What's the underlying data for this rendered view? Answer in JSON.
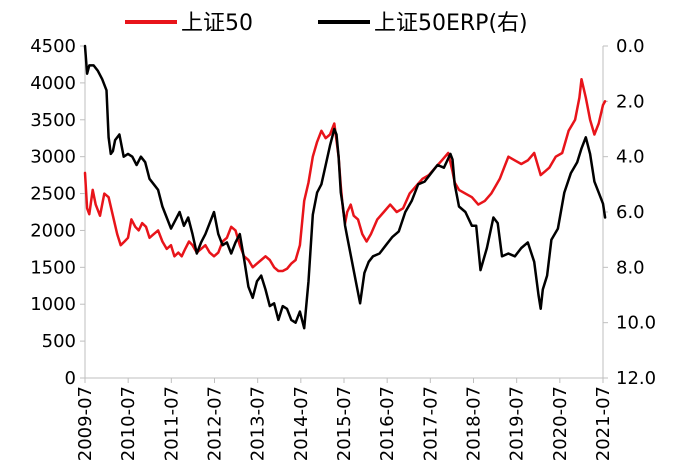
{
  "chart_data": {
    "type": "line",
    "title": "",
    "xlabel": "",
    "ylabel": "",
    "x_tick_labels": [
      "2009-07",
      "2010-07",
      "2011-07",
      "2012-07",
      "2013-07",
      "2014-07",
      "2015-07",
      "2016-07",
      "2017-07",
      "2018-07",
      "2019-07",
      "2020-07",
      "2021-07"
    ],
    "y_left": {
      "min": 0,
      "max": 4500,
      "ticks": [
        0,
        500,
        1000,
        1500,
        2000,
        2500,
        3000,
        3500,
        4000,
        4500
      ],
      "tick_labels": [
        "0",
        "500",
        "1000",
        "1500",
        "2000",
        "2500",
        "3000",
        "3500",
        "4000",
        "4500"
      ]
    },
    "y_right": {
      "min": 0,
      "max": 12,
      "inverted": true,
      "ticks": [
        0,
        2,
        4,
        6,
        8,
        10,
        12
      ],
      "tick_labels": [
        "0.0",
        "2.0",
        "4.0",
        "6.0",
        "8.0",
        "10.0",
        "12.0"
      ]
    },
    "grid": false,
    "legend_position": "top",
    "series": [
      {
        "name": "上证50",
        "axis": "left",
        "color": "#e8141a",
        "x": [
          2009.5,
          2009.55,
          2009.6,
          2009.68,
          2009.75,
          2009.85,
          2009.95,
          2010.05,
          2010.15,
          2010.25,
          2010.33,
          2010.42,
          2010.5,
          2010.58,
          2010.67,
          2010.75,
          2010.83,
          2010.92,
          2011.0,
          2011.1,
          2011.2,
          2011.3,
          2011.4,
          2011.5,
          2011.58,
          2011.67,
          2011.75,
          2011.83,
          2011.92,
          2012.0,
          2012.1,
          2012.2,
          2012.3,
          2012.4,
          2012.5,
          2012.6,
          2012.7,
          2012.8,
          2012.9,
          2013.0,
          2013.1,
          2013.2,
          2013.3,
          2013.4,
          2013.5,
          2013.6,
          2013.7,
          2013.8,
          2013.9,
          2014.0,
          2014.1,
          2014.2,
          2014.3,
          2014.4,
          2014.5,
          2014.6,
          2014.7,
          2014.8,
          2014.9,
          2015.0,
          2015.1,
          2015.2,
          2015.3,
          2015.4,
          2015.45,
          2015.5,
          2015.55,
          2015.6,
          2015.68,
          2015.75,
          2015.85,
          2015.95,
          2016.05,
          2016.15,
          2016.3,
          2016.45,
          2016.6,
          2016.75,
          2016.9,
          2017.05,
          2017.2,
          2017.35,
          2017.5,
          2017.65,
          2017.8,
          2017.95,
          2018.05,
          2018.1,
          2018.2,
          2018.35,
          2018.5,
          2018.65,
          2018.8,
          2018.95,
          2019.05,
          2019.15,
          2019.25,
          2019.35,
          2019.5,
          2019.65,
          2019.8,
          2019.95,
          2020.05,
          2020.1,
          2020.2,
          2020.3,
          2020.45,
          2020.6,
          2020.75,
          2020.9,
          2021.0,
          2021.05,
          2021.15,
          2021.25,
          2021.35,
          2021.45,
          2021.55,
          2021.6
        ],
        "values": [
          2780,
          2300,
          2220,
          2550,
          2350,
          2200,
          2500,
          2450,
          2200,
          1950,
          1800,
          1850,
          1900,
          2150,
          2050,
          2000,
          2100,
          2050,
          1900,
          1950,
          2000,
          1850,
          1750,
          1800,
          1650,
          1700,
          1650,
          1750,
          1850,
          1800,
          1700,
          1750,
          1800,
          1700,
          1650,
          1700,
          1850,
          1900,
          2050,
          2000,
          1800,
          1650,
          1600,
          1500,
          1550,
          1600,
          1650,
          1600,
          1500,
          1450,
          1450,
          1480,
          1550,
          1600,
          1800,
          2400,
          2650,
          3000,
          3200,
          3350,
          3250,
          3300,
          3450,
          3000,
          2600,
          2300,
          2100,
          2250,
          2350,
          2200,
          2150,
          1950,
          1850,
          1950,
          2150,
          2250,
          2350,
          2250,
          2300,
          2500,
          2600,
          2700,
          2750,
          2850,
          2950,
          3050,
          2800,
          2650,
          2550,
          2500,
          2450,
          2350,
          2400,
          2500,
          2600,
          2700,
          2850,
          3000,
          2950,
          2900,
          2950,
          3050,
          2850,
          2750,
          2800,
          2850,
          3000,
          3050,
          3350,
          3500,
          3800,
          4050,
          3800,
          3500,
          3300,
          3450,
          3700,
          3750
        ]
      },
      {
        "name": "上证50ERP(右)",
        "axis": "right",
        "color": "#000000",
        "x": [
          2009.5,
          2009.55,
          2009.6,
          2009.7,
          2009.8,
          2009.9,
          2010.0,
          2010.05,
          2010.1,
          2010.15,
          2010.2,
          2010.3,
          2010.4,
          2010.5,
          2010.6,
          2010.7,
          2010.8,
          2010.9,
          2011.0,
          2011.1,
          2011.2,
          2011.3,
          2011.4,
          2011.5,
          2011.6,
          2011.7,
          2011.8,
          2011.9,
          2012.0,
          2012.1,
          2012.2,
          2012.3,
          2012.4,
          2012.5,
          2012.6,
          2012.7,
          2012.8,
          2012.9,
          2013.0,
          2013.1,
          2013.2,
          2013.3,
          2013.4,
          2013.5,
          2013.6,
          2013.7,
          2013.8,
          2013.9,
          2014.0,
          2014.1,
          2014.2,
          2014.3,
          2014.4,
          2014.5,
          2014.6,
          2014.7,
          2014.8,
          2014.9,
          2015.0,
          2015.1,
          2015.2,
          2015.3,
          2015.35,
          2015.4,
          2015.45,
          2015.5,
          2015.55,
          2015.6,
          2015.7,
          2015.8,
          2015.9,
          2016.0,
          2016.1,
          2016.2,
          2016.35,
          2016.5,
          2016.65,
          2016.8,
          2016.95,
          2017.1,
          2017.25,
          2017.4,
          2017.55,
          2017.7,
          2017.85,
          2018.0,
          2018.05,
          2018.1,
          2018.2,
          2018.35,
          2018.5,
          2018.6,
          2018.7,
          2018.85,
          2019.0,
          2019.1,
          2019.2,
          2019.35,
          2019.5,
          2019.65,
          2019.8,
          2019.95,
          2020.05,
          2020.1,
          2020.15,
          2020.25,
          2020.35,
          2020.5,
          2020.65,
          2020.8,
          2020.95,
          2021.05,
          2021.15,
          2021.25,
          2021.35,
          2021.45,
          2021.55,
          2021.6
        ],
        "values": [
          0.0,
          1.0,
          0.7,
          0.7,
          0.9,
          1.2,
          1.6,
          3.3,
          3.9,
          3.8,
          3.4,
          3.2,
          4.0,
          3.9,
          4.0,
          4.3,
          4.0,
          4.2,
          4.8,
          5.0,
          5.2,
          5.8,
          6.2,
          6.6,
          6.3,
          6.0,
          6.5,
          6.2,
          6.8,
          7.5,
          7.1,
          6.8,
          6.4,
          6.0,
          6.8,
          7.2,
          7.1,
          7.5,
          7.1,
          6.8,
          7.7,
          8.7,
          9.1,
          8.5,
          8.3,
          8.8,
          9.4,
          9.3,
          9.9,
          9.4,
          9.5,
          9.9,
          10.0,
          9.6,
          10.2,
          8.5,
          6.1,
          5.3,
          5.0,
          4.3,
          3.6,
          3.0,
          3.2,
          4.0,
          5.3,
          5.8,
          6.5,
          6.9,
          7.7,
          8.5,
          9.3,
          8.2,
          7.8,
          7.6,
          7.5,
          7.2,
          6.9,
          6.7,
          6.0,
          5.6,
          5.0,
          4.9,
          4.6,
          4.3,
          4.4,
          3.9,
          4.1,
          5.0,
          5.8,
          6.0,
          6.5,
          6.5,
          8.1,
          7.3,
          6.2,
          6.4,
          7.6,
          7.5,
          7.6,
          7.3,
          7.1,
          7.8,
          9.0,
          9.5,
          8.8,
          8.3,
          7.0,
          6.6,
          5.3,
          4.6,
          4.2,
          3.7,
          3.3,
          3.9,
          4.9,
          5.3,
          5.7,
          6.2
        ]
      }
    ]
  }
}
